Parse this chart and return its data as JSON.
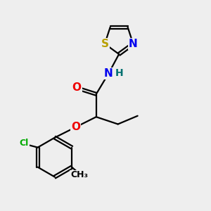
{
  "bg_color": "#eeeeee",
  "atom_colors": {
    "S": "#b8a000",
    "N": "#0000ee",
    "O": "#ee0000",
    "Cl": "#00aa00",
    "C": "#000000",
    "H": "#007070"
  },
  "bond_lw": 1.6,
  "font_size_atom": 11,
  "font_size_small": 9,
  "font_size_h": 10
}
